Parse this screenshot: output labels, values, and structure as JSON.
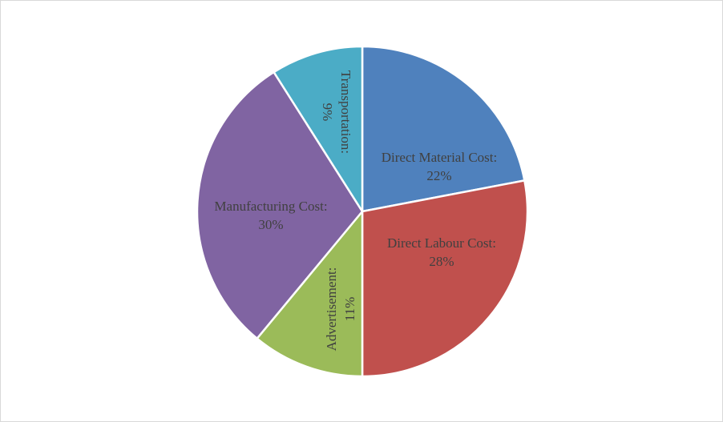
{
  "chart_data": {
    "type": "pie",
    "title": "",
    "start_angle": "top",
    "direction": "clockwise",
    "slices": [
      {
        "label": "Direct Material Cost",
        "value": 22,
        "display": "22%",
        "color": "#4F81BD"
      },
      {
        "label": "Direct Labour Cost",
        "value": 28,
        "display": "28%",
        "color": "#C0504D"
      },
      {
        "label": "Advertisement",
        "value": 11,
        "display": "11%",
        "color": "#9BBB59"
      },
      {
        "label": "Manufacturing Cost",
        "value": 30,
        "display": "30%",
        "color": "#8064A2"
      },
      {
        "label": "Transportation",
        "value": 9,
        "display": "9%",
        "color": "#4BACC6"
      }
    ],
    "label_suffix": ":",
    "legend": "none"
  }
}
